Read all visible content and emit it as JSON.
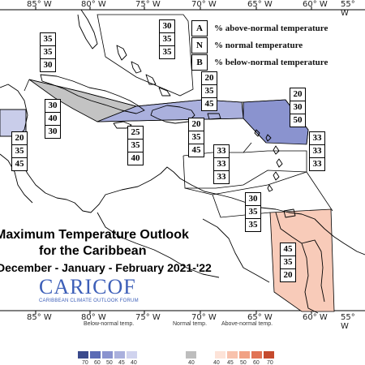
{
  "lon_labels": [
    "85° W",
    "80° W",
    "75° W",
    "70° W",
    "65° W",
    "60° W",
    "55° W"
  ],
  "key": [
    {
      "letter": "A",
      "text": "% above-normal temperature"
    },
    {
      "letter": "N",
      "text": "% normal temperature"
    },
    {
      "letter": "B",
      "text": "% below-normal temperature"
    }
  ],
  "title": {
    "line1": "Maximum Temperature Outlook",
    "line2": "for the Caribbean",
    "line3": "December - January - February 2021-'22"
  },
  "logo": {
    "name": "CARICOF",
    "tagline": "CARIBBEAN CLIMATE OUTLOOK FORUM"
  },
  "regions": [
    {
      "id": "central-america-north",
      "probs": [
        35,
        35,
        30
      ]
    },
    {
      "id": "bahamas",
      "probs": [
        30,
        35,
        35
      ]
    },
    {
      "id": "cayman-cuba-west",
      "probs": [
        30,
        40,
        30
      ]
    },
    {
      "id": "jamaica",
      "probs": [
        25,
        35,
        40
      ]
    },
    {
      "id": "central-america-south",
      "probs": [
        20,
        35,
        45
      ]
    },
    {
      "id": "hispaniola-north",
      "probs": [
        20,
        35,
        45
      ]
    },
    {
      "id": "hispaniola-south",
      "probs": [
        20,
        35,
        45
      ]
    },
    {
      "id": "leeward-islands",
      "probs": [
        20,
        30,
        50
      ]
    },
    {
      "id": "windward-islands",
      "probs": [
        33,
        33,
        33
      ]
    },
    {
      "id": "caribbean-sea",
      "probs": [
        33,
        33,
        33
      ]
    },
    {
      "id": "trinidad-venezuela",
      "probs": [
        30,
        35,
        35
      ]
    },
    {
      "id": "guianas",
      "probs": [
        45,
        35,
        20
      ]
    }
  ],
  "legend": {
    "below_label": "Below-normal temp.",
    "normal_label": "Normal temp.",
    "above_label": "Above-normal temp.",
    "below_ticks": [
      "70",
      "60",
      "50",
      "45",
      "40"
    ],
    "normal_ticks": [
      "40"
    ],
    "above_ticks": [
      "40",
      "45",
      "50",
      "60",
      "70"
    ],
    "colors": {
      "below": [
        "#3a4a8c",
        "#5b6bb5",
        "#8a93cf",
        "#aab0dd",
        "#d0d3ee"
      ],
      "normal": "#bdbdbd",
      "above": [
        "#fde3d8",
        "#f8c2ad",
        "#f1a184",
        "#e17355",
        "#c54a2e"
      ]
    }
  }
}
